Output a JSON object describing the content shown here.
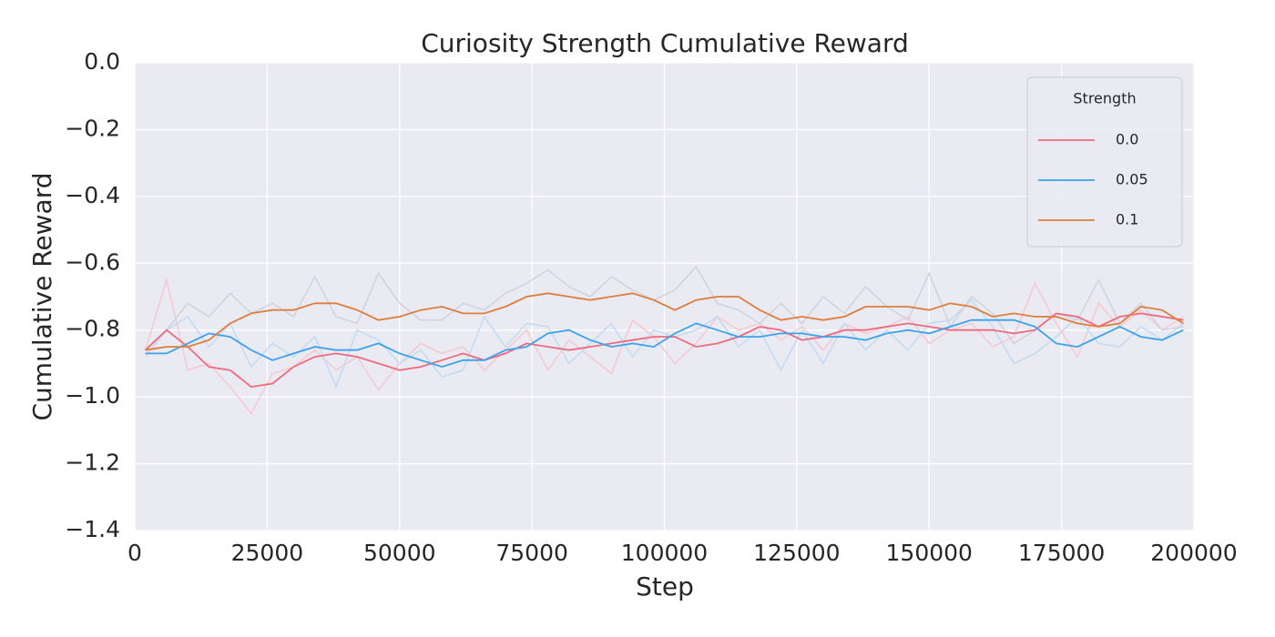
{
  "chart_data": {
    "type": "line",
    "title": "Curiosity Strength Cumulative Reward",
    "x_label": "Step",
    "y_label": "Cumulative Reward",
    "legend_title": "Strength",
    "legend_loc": "upper right",
    "grid": true,
    "xlim": [
      0,
      200000
    ],
    "ylim": [
      -1.4,
      0
    ],
    "xticks": [
      0,
      25000,
      50000,
      75000,
      100000,
      125000,
      150000,
      175000,
      200000
    ],
    "yticks": [
      {
        "value": -1.4,
        "label": "−1.4"
      },
      {
        "value": -1.2,
        "label": "−1.2"
      },
      {
        "value": -1.0,
        "label": "−1.0"
      },
      {
        "value": -0.8,
        "label": "−0.8"
      },
      {
        "value": -0.6,
        "label": "−0.6"
      },
      {
        "value": -0.4,
        "label": "−0.4"
      },
      {
        "value": -0.2,
        "label": "−0.2"
      },
      {
        "value": 0,
        "label": "0.0"
      }
    ],
    "x": [
      2000,
      6000,
      10000,
      14000,
      18000,
      22000,
      26000,
      30000,
      34000,
      38000,
      42000,
      46000,
      50000,
      54000,
      58000,
      62000,
      66000,
      70000,
      74000,
      78000,
      82000,
      86000,
      90000,
      94000,
      98000,
      102000,
      106000,
      110000,
      114000,
      118000,
      122000,
      126000,
      130000,
      134000,
      138000,
      142000,
      146000,
      150000,
      154000,
      158000,
      162000,
      166000,
      170000,
      174000,
      178000,
      182000,
      186000,
      190000,
      194000,
      198000
    ],
    "series": [
      {
        "name": "0.0",
        "color": "#f0697f",
        "raw_color": "#f7c9d1",
        "values": [
          -0.86,
          -0.8,
          -0.85,
          -0.91,
          -0.92,
          -0.97,
          -0.96,
          -0.91,
          -0.88,
          -0.87,
          -0.88,
          -0.9,
          -0.92,
          -0.91,
          -0.89,
          -0.87,
          -0.89,
          -0.87,
          -0.84,
          -0.85,
          -0.86,
          -0.85,
          -0.84,
          -0.83,
          -0.82,
          -0.82,
          -0.85,
          -0.84,
          -0.82,
          -0.79,
          -0.8,
          -0.83,
          -0.82,
          -0.8,
          -0.8,
          -0.79,
          -0.78,
          -0.79,
          -0.8,
          -0.8,
          -0.8,
          -0.81,
          -0.8,
          -0.75,
          -0.76,
          -0.79,
          -0.76,
          -0.75,
          -0.76,
          -0.77
        ],
        "raw": [
          -0.86,
          -0.65,
          -0.92,
          -0.9,
          -0.97,
          -1.05,
          -0.93,
          -0.91,
          -0.86,
          -0.92,
          -0.88,
          -0.98,
          -0.9,
          -0.84,
          -0.87,
          -0.85,
          -0.92,
          -0.86,
          -0.8,
          -0.92,
          -0.83,
          -0.88,
          -0.93,
          -0.77,
          -0.82,
          -0.9,
          -0.84,
          -0.76,
          -0.8,
          -0.78,
          -0.83,
          -0.79,
          -0.86,
          -0.78,
          -0.81,
          -0.79,
          -0.76,
          -0.84,
          -0.8,
          -0.78,
          -0.85,
          -0.82,
          -0.66,
          -0.78,
          -0.88,
          -0.72,
          -0.79,
          -0.74,
          -0.8,
          -0.76
        ]
      },
      {
        "name": "0.05",
        "color": "#3ba3ec",
        "raw_color": "#c3dcf2",
        "values": [
          -0.87,
          -0.87,
          -0.84,
          -0.81,
          -0.82,
          -0.86,
          -0.89,
          -0.87,
          -0.85,
          -0.86,
          -0.86,
          -0.84,
          -0.87,
          -0.89,
          -0.91,
          -0.89,
          -0.89,
          -0.86,
          -0.85,
          -0.81,
          -0.8,
          -0.83,
          -0.85,
          -0.84,
          -0.85,
          -0.81,
          -0.78,
          -0.8,
          -0.82,
          -0.82,
          -0.81,
          -0.81,
          -0.82,
          -0.82,
          -0.83,
          -0.81,
          -0.8,
          -0.81,
          -0.79,
          -0.77,
          -0.77,
          -0.77,
          -0.79,
          -0.84,
          -0.85,
          -0.82,
          -0.79,
          -0.82,
          -0.83,
          -0.8
        ],
        "raw": [
          -0.88,
          -0.8,
          -0.76,
          -0.85,
          -0.78,
          -0.91,
          -0.84,
          -0.88,
          -0.82,
          -0.97,
          -0.8,
          -0.83,
          -0.9,
          -0.86,
          -0.94,
          -0.92,
          -0.76,
          -0.85,
          -0.78,
          -0.79,
          -0.9,
          -0.84,
          -0.78,
          -0.88,
          -0.8,
          -0.82,
          -0.8,
          -0.76,
          -0.85,
          -0.8,
          -0.92,
          -0.8,
          -0.9,
          -0.78,
          -0.86,
          -0.8,
          -0.86,
          -0.78,
          -0.77,
          -0.71,
          -0.79,
          -0.9,
          -0.87,
          -0.82,
          -0.76,
          -0.84,
          -0.85,
          -0.79,
          -0.83,
          -0.78
        ]
      },
      {
        "name": "0.1",
        "color": "#dd7e3d",
        "raw_color": "#d0d3e2",
        "values": [
          -0.86,
          -0.85,
          -0.85,
          -0.83,
          -0.78,
          -0.75,
          -0.74,
          -0.74,
          -0.72,
          -0.72,
          -0.74,
          -0.77,
          -0.76,
          -0.74,
          -0.73,
          -0.75,
          -0.75,
          -0.73,
          -0.7,
          -0.69,
          -0.7,
          -0.71,
          -0.7,
          -0.69,
          -0.71,
          -0.74,
          -0.71,
          -0.7,
          -0.7,
          -0.74,
          -0.77,
          -0.76,
          -0.77,
          -0.76,
          -0.73,
          -0.73,
          -0.73,
          -0.74,
          -0.72,
          -0.73,
          -0.76,
          -0.75,
          -0.76,
          -0.76,
          -0.78,
          -0.79,
          -0.78,
          -0.73,
          -0.74,
          -0.78
        ],
        "raw": [
          -0.86,
          -0.8,
          -0.72,
          -0.76,
          -0.69,
          -0.75,
          -0.72,
          -0.76,
          -0.64,
          -0.76,
          -0.78,
          -0.63,
          -0.72,
          -0.77,
          -0.77,
          -0.72,
          -0.74,
          -0.69,
          -0.66,
          -0.62,
          -0.67,
          -0.7,
          -0.64,
          -0.68,
          -0.71,
          -0.68,
          -0.61,
          -0.72,
          -0.74,
          -0.78,
          -0.72,
          -0.78,
          -0.7,
          -0.75,
          -0.67,
          -0.73,
          -0.77,
          -0.63,
          -0.79,
          -0.7,
          -0.75,
          -0.84,
          -0.8,
          -0.75,
          -0.77,
          -0.65,
          -0.78,
          -0.72,
          -0.8,
          -0.79
        ]
      }
    ]
  }
}
